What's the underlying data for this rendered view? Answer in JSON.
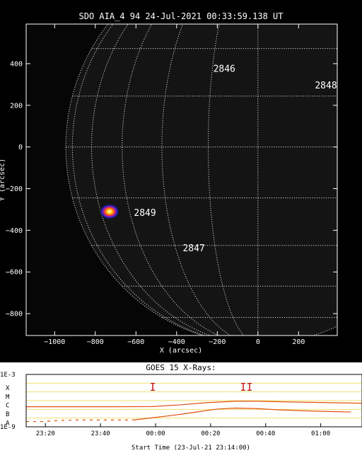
{
  "chart_data": [
    {
      "type": "scatter",
      "title": "SDO AIA_4 94 24-Jul-2021 00:33:59.138 UT",
      "xlabel": "X (arcsec)",
      "ylabel": "Y (arcsec)",
      "xlim": [
        -1140,
        390
      ],
      "ylim": [
        -905,
        590
      ],
      "xticks": [
        -1000,
        -800,
        -600,
        -400,
        -200,
        0,
        200
      ],
      "yticks": [
        -800,
        -600,
        -400,
        -200,
        0,
        200,
        400
      ],
      "solar_radius": 945,
      "grid_latitudes": [
        -60,
        -45,
        -30,
        -15,
        0,
        15,
        30,
        45,
        60
      ],
      "grid_longitudes": [
        -75,
        -60,
        -45,
        -30,
        -15,
        0
      ],
      "flare": {
        "x": -730,
        "y": -310
      },
      "annotations": [
        {
          "text": "2846",
          "x": -220,
          "y": 360
        },
        {
          "text": "2848",
          "x": 280,
          "y": 280
        },
        {
          "text": "2849",
          "x": -610,
          "y": -330
        },
        {
          "text": "2847",
          "x": -370,
          "y": -500
        }
      ]
    },
    {
      "type": "line",
      "title": "GOES 15 X-Rays:",
      "xlabel": "Start Time (23-Jul-21 23:14:00)",
      "x_ticks": [
        "23:20",
        "23:40",
        "00:00",
        "00:20",
        "00:40",
        "01:00"
      ],
      "x_tick_minutes": [
        6,
        26,
        46,
        66,
        86,
        106
      ],
      "xlim_minutes": [
        -1,
        121
      ],
      "y_scale": "log",
      "ylim": [
        1e-09,
        0.001
      ],
      "y_end_labels": [
        "1E-9",
        "1E-3"
      ],
      "class_labels": [
        "A",
        "B",
        "C",
        "M",
        "X"
      ],
      "markers": [
        {
          "text": "I",
          "t": 45
        },
        {
          "text": "II",
          "t": 79
        }
      ],
      "series": [
        {
          "t": [
            -1,
            30,
            45,
            55,
            65,
            75,
            82,
            95,
            121
          ],
          "flux": [
            2e-07,
            2e-07,
            2.1e-07,
            3.3e-07,
            6e-07,
            8.5e-07,
            8.6e-07,
            7e-07,
            5e-07
          ]
        },
        {
          "t": [
            -1,
            5,
            12,
            18,
            25,
            32,
            38,
            45,
            52,
            60,
            68,
            75,
            82,
            90,
            100,
            110,
            117
          ],
          "flux": [
            4e-09,
            4e-09,
            5.5e-09,
            6e-09,
            6e-09,
            6e-09,
            6e-09,
            1.1e-08,
            2e-08,
            4.5e-08,
            1.05e-07,
            1.4e-07,
            1.25e-07,
            9e-08,
            6.8e-08,
            5.5e-08,
            5e-08
          ],
          "dashed_until": 40
        }
      ]
    }
  ]
}
